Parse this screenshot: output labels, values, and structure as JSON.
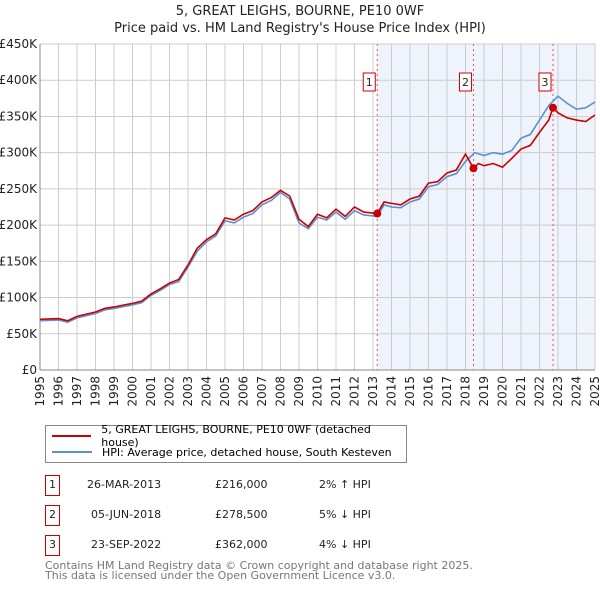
{
  "chart_data": {
    "type": "line",
    "title": "5, GREAT LEIGHS, BOURNE, PE10 0WF",
    "subtitle": "Price paid vs. HM Land Registry's House Price Index (HPI)",
    "xlim": [
      1995,
      2025
    ],
    "ylim": [
      0,
      450000
    ],
    "yticks": [
      0,
      50000,
      100000,
      150000,
      200000,
      250000,
      300000,
      350000,
      400000,
      450000
    ],
    "ytick_labels": [
      "£0",
      "£50K",
      "£100K",
      "£150K",
      "£200K",
      "£250K",
      "£300K",
      "£350K",
      "£400K",
      "£450K"
    ],
    "xtick_labels": [
      "1995",
      "1996",
      "1997",
      "1998",
      "1999",
      "2000",
      "2001",
      "2002",
      "2003",
      "2004",
      "2005",
      "2006",
      "2007",
      "2008",
      "2009",
      "2010",
      "2011",
      "2012",
      "2013",
      "2014",
      "2015",
      "2016",
      "2017",
      "2018",
      "2019",
      "2020",
      "2021",
      "2022",
      "2023",
      "2024",
      "2025"
    ],
    "grid": true,
    "series": [
      {
        "name": "5, GREAT LEIGHS, BOURNE, PE10 0WF (detached house)",
        "color": "#cc0000",
        "x": [
          1995,
          1996,
          1996.5,
          1997,
          1998,
          1998.5,
          1999,
          2000,
          2000.5,
          2001,
          2001.5,
          2002,
          2002.5,
          2003,
          2003.5,
          2004,
          2004.5,
          2005,
          2005.5,
          2006,
          2006.5,
          2007,
          2007.5,
          2008,
          2008.5,
          2009,
          2009.5,
          2010,
          2010.5,
          2011,
          2011.5,
          2012,
          2012.5,
          2013.23,
          2013.6,
          2014,
          2014.5,
          2015,
          2015.5,
          2016,
          2016.5,
          2017,
          2017.5,
          2018,
          2018.43,
          2018.7,
          2019,
          2019.5,
          2020,
          2020.5,
          2021,
          2021.5,
          2022,
          2022.5,
          2022.73,
          2023,
          2023.5,
          2024,
          2024.5,
          2025
        ],
        "y": [
          70,
          71,
          68,
          74,
          80,
          85,
          87,
          92,
          95,
          105,
          112,
          120,
          125,
          145,
          168,
          180,
          188,
          210,
          207,
          215,
          220,
          232,
          238,
          248,
          240,
          208,
          198,
          215,
          210,
          222,
          212,
          225,
          218,
          216,
          232,
          230,
          228,
          236,
          240,
          258,
          260,
          272,
          276,
          298,
          278.5,
          285,
          282,
          285,
          280,
          292,
          305,
          310,
          328,
          345,
          362,
          355,
          348,
          345,
          343,
          352
        ]
      },
      {
        "name": "HPI: Average price, detached house, South Kesteven",
        "color": "#5b8fd4",
        "x": [
          1995,
          1996,
          1996.5,
          1997,
          1998,
          1998.5,
          1999,
          2000,
          2000.5,
          2001,
          2001.5,
          2002,
          2002.5,
          2003,
          2003.5,
          2004,
          2004.5,
          2005,
          2005.5,
          2006,
          2006.5,
          2007,
          2007.5,
          2008,
          2008.5,
          2009,
          2009.5,
          2010,
          2010.5,
          2011,
          2011.5,
          2012,
          2012.5,
          2013.23,
          2013.6,
          2014,
          2014.5,
          2015,
          2015.5,
          2016,
          2016.5,
          2017,
          2017.5,
          2018,
          2018.5,
          2019,
          2019.5,
          2020,
          2020.5,
          2021,
          2021.5,
          2022,
          2022.5,
          2023,
          2023.5,
          2024,
          2024.5,
          2025
        ],
        "y": [
          68,
          69,
          66,
          72,
          78,
          83,
          85,
          90,
          93,
          103,
          110,
          118,
          122,
          142,
          164,
          177,
          185,
          206,
          203,
          211,
          216,
          228,
          234,
          245,
          236,
          203,
          195,
          211,
          207,
          218,
          208,
          220,
          214,
          212,
          228,
          225,
          224,
          232,
          236,
          253,
          256,
          267,
          271,
          288,
          300,
          296,
          300,
          298,
          303,
          320,
          325,
          345,
          365,
          378,
          368,
          360,
          362,
          370
        ]
      }
    ],
    "sales": [
      {
        "num": "1",
        "x": 2013.23,
        "y": 216000,
        "date": "26-MAR-2013",
        "price": "£216,000",
        "hpi": "2% ↑ HPI"
      },
      {
        "num": "2",
        "x": 2018.43,
        "y": 278500,
        "date": "05-JUN-2018",
        "price": "£278,500",
        "hpi": "5% ↓ HPI"
      },
      {
        "num": "3",
        "x": 2022.73,
        "y": 362000,
        "date": "23-SEP-2022",
        "price": "£362,000",
        "hpi": "4% ↓ HPI"
      }
    ],
    "shade_from": 2013.23,
    "shade_to": 2025,
    "legend": "below"
  },
  "footer": {
    "line1": "Contains HM Land Registry data © Crown copyright and database right 2025.",
    "line2": "This data is licensed under the Open Government Licence v3.0."
  }
}
